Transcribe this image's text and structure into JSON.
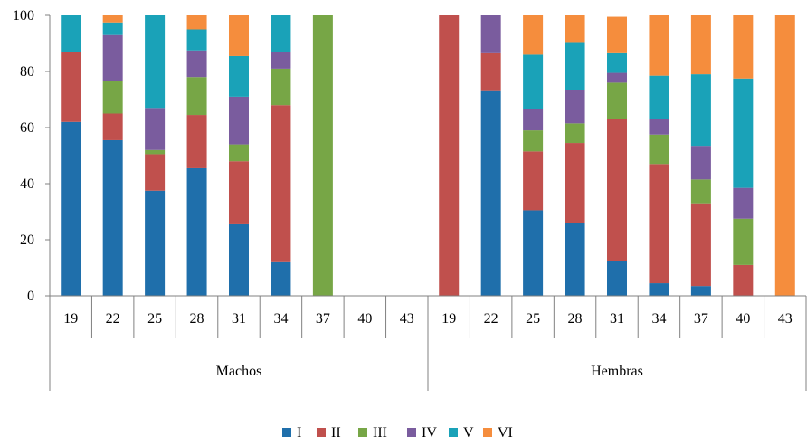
{
  "chart_data": {
    "type": "bar",
    "stacked": true,
    "percent": true,
    "ylim": [
      0,
      100
    ],
    "yticks": [
      0,
      20,
      40,
      60,
      80,
      100
    ],
    "grid": false,
    "legend_position": "bottom-center",
    "groups": [
      {
        "label": "Machos",
        "categories": [
          "19",
          "22",
          "25",
          "28",
          "31",
          "34",
          "37",
          "40",
          "43"
        ]
      },
      {
        "label": "Hembras",
        "categories": [
          "19",
          "22",
          "25",
          "28",
          "31",
          "34",
          "37",
          "40",
          "43"
        ]
      }
    ],
    "series": [
      {
        "name": "I",
        "color": "#1F6FAB",
        "values": [
          62,
          55.5,
          37.5,
          45.5,
          25.5,
          12,
          0,
          0,
          0,
          0,
          73,
          30.5,
          26,
          12.5,
          4.5,
          3.5,
          0,
          0
        ]
      },
      {
        "name": "II",
        "color": "#C0504D",
        "values": [
          25,
          9.5,
          13,
          19,
          22.5,
          56,
          0,
          0,
          0,
          100,
          13.5,
          21,
          28.5,
          50.5,
          42.5,
          29.5,
          11,
          0
        ]
      },
      {
        "name": "III",
        "color": "#77A646",
        "values": [
          0,
          11.5,
          1.5,
          13.5,
          6,
          13,
          100,
          0,
          0,
          0,
          0,
          7.5,
          7,
          13,
          10.5,
          8.5,
          16.5,
          0
        ]
      },
      {
        "name": "IV",
        "color": "#7A5C9E",
        "values": [
          0,
          16.5,
          15,
          9.5,
          17,
          6,
          0,
          0,
          0,
          0,
          13.5,
          7.5,
          12,
          3.5,
          5.5,
          12,
          11,
          0
        ]
      },
      {
        "name": "V",
        "color": "#1AA2B8",
        "values": [
          13,
          4.5,
          33,
          7.5,
          14.5,
          13,
          0,
          0,
          0,
          0,
          0,
          19.5,
          17,
          7,
          15.5,
          25.5,
          39,
          0
        ]
      },
      {
        "name": "VI",
        "color": "#F58D3D",
        "values": [
          0,
          2.5,
          0,
          5,
          14.5,
          0,
          0,
          0,
          0,
          0,
          0,
          14,
          9.5,
          13,
          21.5,
          21,
          22.5,
          100
        ]
      }
    ]
  }
}
